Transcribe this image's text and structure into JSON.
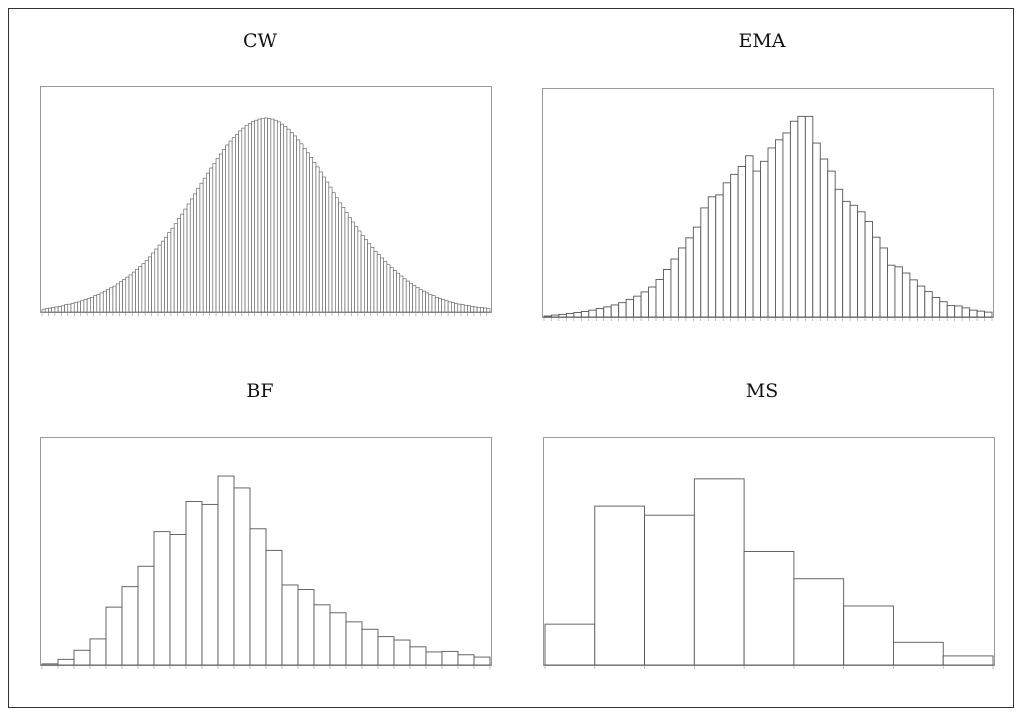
{
  "colors": {
    "bar_fill": "#ffffff",
    "bar_stroke": "#555555",
    "axis": "#999999",
    "frame": "#333333"
  },
  "chart_data": [
    {
      "id": "cw",
      "type": "bar",
      "title": "CW",
      "grid": false,
      "values": [
        0.5,
        0.6,
        0.7,
        0.8,
        0.9,
        1.0,
        1.1,
        1.3,
        1.4,
        1.5,
        1.7,
        1.8,
        2.0,
        2.2,
        2.4,
        2.6,
        2.9,
        3.1,
        3.4,
        3.7,
        4.0,
        4.3,
        4.6,
        5.0,
        5.4,
        5.8,
        6.2,
        6.6,
        7.1,
        7.6,
        8.1,
        8.6,
        9.2,
        9.8,
        10.5,
        11.2,
        11.9,
        12.6,
        13.3,
        14.1,
        14.9,
        15.7,
        16.6,
        17.4,
        18.3,
        19.2,
        20.1,
        21.0,
        22.0,
        22.9,
        23.8,
        24.7,
        25.6,
        26.4,
        27.3,
        28.1,
        28.9,
        29.7,
        30.4,
        31.0,
        31.6,
        32.2,
        32.7,
        33.2,
        33.5,
        33.9,
        34.1,
        34.3,
        34.4,
        34.5,
        34.4,
        34.3,
        34.1,
        33.8,
        33.4,
        33.0,
        32.5,
        31.9,
        31.3,
        30.6,
        29.9,
        29.1,
        28.3,
        27.5,
        26.6,
        25.8,
        24.9,
        24.0,
        23.1,
        22.2,
        21.2,
        20.3,
        19.4,
        18.6,
        17.7,
        16.8,
        16.0,
        15.2,
        14.4,
        13.6,
        12.9,
        12.2,
        11.5,
        10.8,
        10.2,
        9.6,
        9.0,
        8.4,
        7.9,
        7.4,
        6.9,
        6.4,
        5.9,
        5.5,
        5.1,
        4.7,
        4.4,
        4.0,
        3.7,
        3.4,
        3.1,
        2.9,
        2.6,
        2.4,
        2.2,
        2.0,
        1.8,
        1.7,
        1.5,
        1.4,
        1.3,
        1.2,
        1.1,
        1.0,
        0.9,
        0.8,
        0.8,
        0.7,
        0.6
      ],
      "ylim": [
        0,
        40
      ]
    },
    {
      "id": "ema",
      "type": "bar",
      "title": "EMA",
      "grid": false,
      "values": [
        0.3,
        0.6,
        0.8,
        1.1,
        1.4,
        1.7,
        2.1,
        2.6,
        3.1,
        3.7,
        4.4,
        5.4,
        6.4,
        7.7,
        9.2,
        11.5,
        14.6,
        17.8,
        21.2,
        24.3,
        27.6,
        33.5,
        36.9,
        37.5,
        41.2,
        43.8,
        46.2,
        49.5,
        44.8,
        47.8,
        51.9,
        54.4,
        56.5,
        60.1,
        61.6,
        61.6,
        53.4,
        48.5,
        44.8,
        39.2,
        35.5,
        34.3,
        32.3,
        29.3,
        24.5,
        21.2,
        15.9,
        15.4,
        13.5,
        11.4,
        9.5,
        7.8,
        6.0,
        4.7,
        3.5,
        3.4,
        2.8,
        2.1,
        1.8,
        1.5
      ],
      "ylim": [
        0,
        70
      ]
    },
    {
      "id": "bf",
      "type": "bar",
      "title": "BF",
      "grid": false,
      "values": [
        0.2,
        1.0,
        2.6,
        4.6,
        10.2,
        13.8,
        17.4,
        23.5,
        23.0,
        28.8,
        28.3,
        33.3,
        31.2,
        24.0,
        20.2,
        14.1,
        13.3,
        10.6,
        9.2,
        7.6,
        6.3,
        5.0,
        4.4,
        3.2,
        2.3,
        2.4,
        1.8,
        1.4
      ],
      "ylim": [
        0,
        40
      ]
    },
    {
      "id": "ms",
      "type": "bar",
      "title": "MS",
      "grid": false,
      "values": [
        0.9,
        3.5,
        3.3,
        4.1,
        2.5,
        1.9,
        1.3,
        0.5,
        0.2
      ],
      "ylim": [
        0,
        5
      ]
    }
  ]
}
